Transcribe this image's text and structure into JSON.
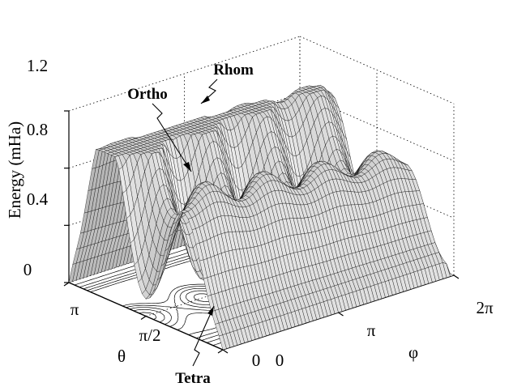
{
  "chart_data": {
    "type": "surface",
    "title": "",
    "zlabel": "Energy (mHa)",
    "xlabel": "φ",
    "ylabel": "θ",
    "zlim": [
      0,
      1.2
    ],
    "z_ticks": [
      "0",
      "0.4",
      "0.8",
      "1.2"
    ],
    "phi_ticks": [
      "0",
      "π",
      "2π"
    ],
    "theta_ticks": [
      "0",
      "π/2",
      "π"
    ],
    "grid": true,
    "contour_projection": true,
    "annotations": [
      {
        "label": "Rhom",
        "energy": 1.05
      },
      {
        "label": "Ortho",
        "energy": 0.9
      },
      {
        "label": "Tetra",
        "energy": 0.0
      }
    ],
    "surface_colors": {
      "face": "#dcdcdc",
      "edge": "#000000"
    }
  }
}
